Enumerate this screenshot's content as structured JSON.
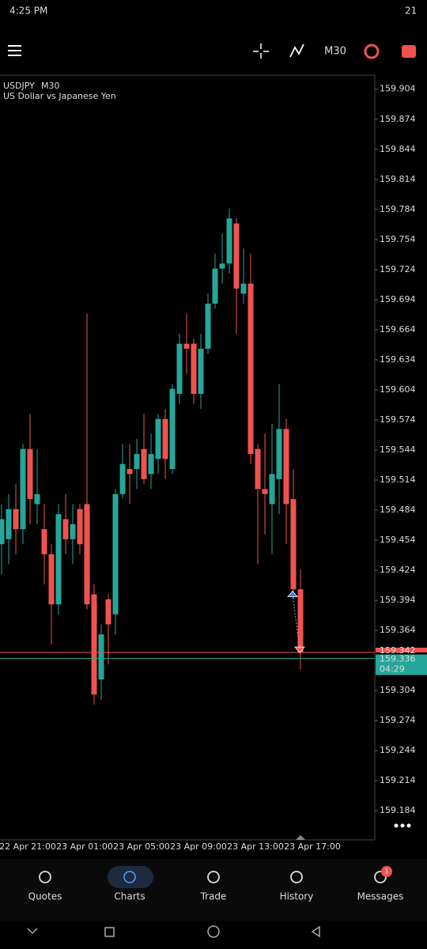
{
  "status_bar": {
    "time": "4:25 PM",
    "battery": "21"
  },
  "toolbar": {
    "timeframe": "M30"
  },
  "chart_data": {
    "type": "candlestick",
    "symbol": "USDJPY",
    "timeframe": "M30",
    "description": "US Dollar vs Japanese Yen",
    "up_color": "#26a69a",
    "down_color": "#ef5350",
    "ylim": [
      159.155,
      159.918
    ],
    "yticks": [
      159.904,
      159.874,
      159.844,
      159.814,
      159.784,
      159.754,
      159.724,
      159.694,
      159.664,
      159.634,
      159.604,
      159.574,
      159.544,
      159.514,
      159.484,
      159.454,
      159.424,
      159.394,
      159.364,
      159.304,
      159.274,
      159.244,
      159.214,
      159.184
    ],
    "x_labels": [
      "22 Apr 21:00",
      "23 Apr 01:00",
      "23 Apr 05:00",
      "23 Apr 09:00",
      "23 Apr 13:00",
      "23 Apr 17:00"
    ],
    "open": [
      159.45,
      159.455,
      159.485,
      159.465,
      159.545,
      159.49,
      159.465,
      159.44,
      159.39,
      159.475,
      159.455,
      159.485,
      159.49,
      159.4,
      159.315,
      159.395,
      159.38,
      159.5,
      159.525,
      159.525,
      159.545,
      159.52,
      159.535,
      159.575,
      159.525,
      159.6,
      159.65,
      159.65,
      159.6,
      159.645,
      159.69,
      159.725,
      159.73,
      159.77,
      159.7,
      159.71,
      159.545,
      159.505,
      159.49,
      159.515,
      159.565,
      159.495,
      159.405
    ],
    "high": [
      159.49,
      159.5,
      159.51,
      159.55,
      159.58,
      159.545,
      159.49,
      159.45,
      159.49,
      159.5,
      159.49,
      159.49,
      159.68,
      159.41,
      159.37,
      159.4,
      159.505,
      159.55,
      159.55,
      159.555,
      159.58,
      159.56,
      159.58,
      159.585,
      159.61,
      159.66,
      159.68,
      159.655,
      159.66,
      159.7,
      159.74,
      159.76,
      159.785,
      159.775,
      159.745,
      159.74,
      159.55,
      159.56,
      159.57,
      159.61,
      159.575,
      159.525,
      159.425
    ],
    "low": [
      159.42,
      159.43,
      159.44,
      159.45,
      159.47,
      159.47,
      159.41,
      159.35,
      159.38,
      159.44,
      159.43,
      159.44,
      159.385,
      159.29,
      159.295,
      159.33,
      159.36,
      159.495,
      159.49,
      159.505,
      159.51,
      159.505,
      159.52,
      159.515,
      159.52,
      159.59,
      159.62,
      159.59,
      159.585,
      159.64,
      159.685,
      159.71,
      159.72,
      159.66,
      159.69,
      159.53,
      159.43,
      159.46,
      159.44,
      159.48,
      159.45,
      159.395,
      159.325
    ],
    "close": [
      159.475,
      159.485,
      159.465,
      159.545,
      159.495,
      159.5,
      159.44,
      159.39,
      159.48,
      159.455,
      159.47,
      159.45,
      159.39,
      159.3,
      159.36,
      159.37,
      159.5,
      159.53,
      159.52,
      159.54,
      159.515,
      159.54,
      159.575,
      159.535,
      159.605,
      159.65,
      159.645,
      159.6,
      159.645,
      159.69,
      159.725,
      159.73,
      159.775,
      159.705,
      159.71,
      159.54,
      159.505,
      159.5,
      159.52,
      159.565,
      159.49,
      159.405,
      159.342
    ],
    "price_lines": [
      {
        "value": 159.342,
        "color": "#ef5350"
      },
      {
        "value": 159.336,
        "color": "#26a69a"
      }
    ],
    "timer": "04:29",
    "trades": [
      {
        "price": 159.4,
        "color": "#2f7de1"
      },
      {
        "price": 159.345,
        "color": "#ef5350"
      }
    ]
  },
  "nav": {
    "items": [
      "Quotes",
      "Charts",
      "Trade",
      "History",
      "Messages"
    ],
    "badge": "1"
  }
}
